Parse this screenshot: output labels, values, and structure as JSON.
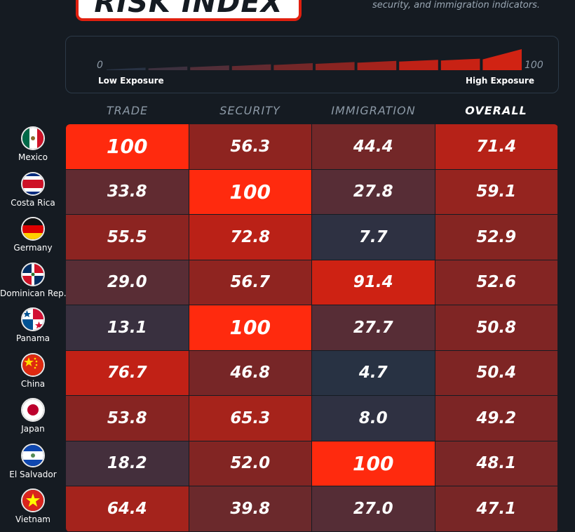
{
  "header": {
    "title": "RISK INDEX",
    "subtitle": "security, and immigration indicators."
  },
  "legend": {
    "min": "0",
    "max": "100",
    "low_label": "Low Exposure",
    "high_label": "High Exposure",
    "segments": 10
  },
  "colors": {
    "background": "#151b22",
    "low": "#1e3346",
    "high": "#ff2a0e"
  },
  "chart_data": {
    "type": "heatmap",
    "columns": [
      "TRADE",
      "SECURITY",
      "IMMIGRATION",
      "OVERALL"
    ],
    "rows": [
      {
        "country": "Mexico",
        "flag": "mexico-flag-icon",
        "values": [
          100,
          56.3,
          44.4,
          71.4
        ],
        "labels": [
          "100",
          "56.3",
          "44.4",
          "71.4"
        ]
      },
      {
        "country": "Costa Rica",
        "flag": "costa-rica-flag-icon",
        "values": [
          33.8,
          100,
          27.8,
          59.1
        ],
        "labels": [
          "33.8",
          "100",
          "27.8",
          "59.1"
        ]
      },
      {
        "country": "Germany",
        "flag": "germany-flag-icon",
        "values": [
          55.5,
          72.8,
          7.7,
          52.9
        ],
        "labels": [
          "55.5",
          "72.8",
          "7.7",
          "52.9"
        ]
      },
      {
        "country": "Dominican Rep.",
        "flag": "dominican-republic-flag-icon",
        "values": [
          29.0,
          56.7,
          91.4,
          52.6
        ],
        "labels": [
          "29.0",
          "56.7",
          "91.4",
          "52.6"
        ]
      },
      {
        "country": "Panama",
        "flag": "panama-flag-icon",
        "values": [
          13.1,
          100,
          27.7,
          50.8
        ],
        "labels": [
          "13.1",
          "100",
          "27.7",
          "50.8"
        ]
      },
      {
        "country": "China",
        "flag": "china-flag-icon",
        "values": [
          76.7,
          46.8,
          4.7,
          50.4
        ],
        "labels": [
          "76.7",
          "46.8",
          "4.7",
          "50.4"
        ]
      },
      {
        "country": "Japan",
        "flag": "japan-flag-icon",
        "values": [
          53.8,
          65.3,
          8.0,
          49.2
        ],
        "labels": [
          "53.8",
          "65.3",
          "8.0",
          "49.2"
        ]
      },
      {
        "country": "El Salvador",
        "flag": "el-salvador-flag-icon",
        "values": [
          18.2,
          52.0,
          100,
          48.1
        ],
        "labels": [
          "18.2",
          "52.0",
          "100",
          "48.1"
        ]
      },
      {
        "country": "Vietnam",
        "flag": "vietnam-flag-icon",
        "values": [
          64.4,
          39.8,
          27.0,
          47.1
        ],
        "labels": [
          "64.4",
          "39.8",
          "27.0",
          "47.1"
        ]
      }
    ],
    "value_range": [
      0,
      100
    ]
  }
}
